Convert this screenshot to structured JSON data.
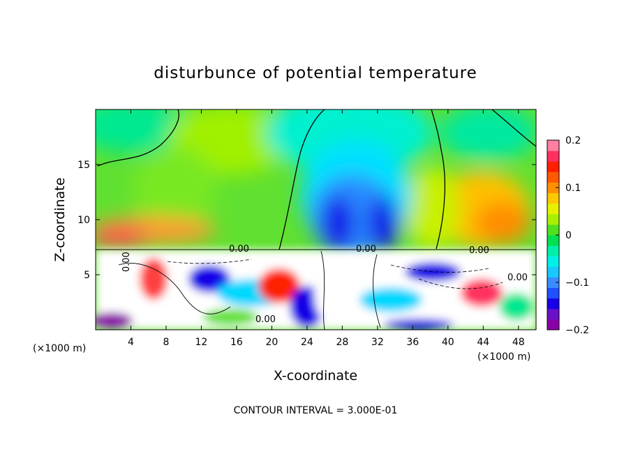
{
  "chart_data": {
    "type": "heatmap",
    "title": "disturbunce of potential temperature",
    "xlabel": "X-coordinate",
    "ylabel": "Z-coordinate",
    "x_unit_left": "(×1000 m)",
    "x_unit_right": "(×1000 m)",
    "footer": "CONTOUR INTERVAL = 3.000E-01",
    "xlim": [
      0,
      50
    ],
    "ylim": [
      0,
      20
    ],
    "xticks": [
      4,
      8,
      12,
      16,
      20,
      24,
      28,
      32,
      36,
      40,
      44,
      48
    ],
    "yticks": [
      5,
      10,
      15
    ],
    "colorbar": {
      "range": [
        -0.2,
        0.2
      ],
      "tick_values": [
        0.2,
        0.1,
        0,
        -0.1,
        -0.2
      ],
      "tick_labels": [
        "0.2",
        "0.1",
        "0",
        "−0.1",
        "−0.2"
      ],
      "colors": [
        "#8a00a8",
        "#6a10c8",
        "#1800e8",
        "#2050ff",
        "#3a8cff",
        "#18c8ff",
        "#00f0e8",
        "#00f0a8",
        "#00e050",
        "#50e020",
        "#a8f000",
        "#e8f000",
        "#ffc800",
        "#ff9000",
        "#ff5a00",
        "#ff2000",
        "#ff3060",
        "#ff80a0"
      ]
    },
    "contour_labels": [
      "0.00",
      "0.00",
      "0.00",
      "0.00",
      "0.00",
      "0.00"
    ],
    "features": {
      "interface_height": 7.2,
      "cold_dome": {
        "x_center": 30.5,
        "top": 17.5,
        "min_value": -0.2
      },
      "warm_region": {
        "x_center": 44,
        "z_center": 11.5,
        "max_value": 0.1
      },
      "turbulent_layer": {
        "z_range": [
          0,
          7.2
        ],
        "amplitude": "beyond ±0.2"
      }
    }
  }
}
